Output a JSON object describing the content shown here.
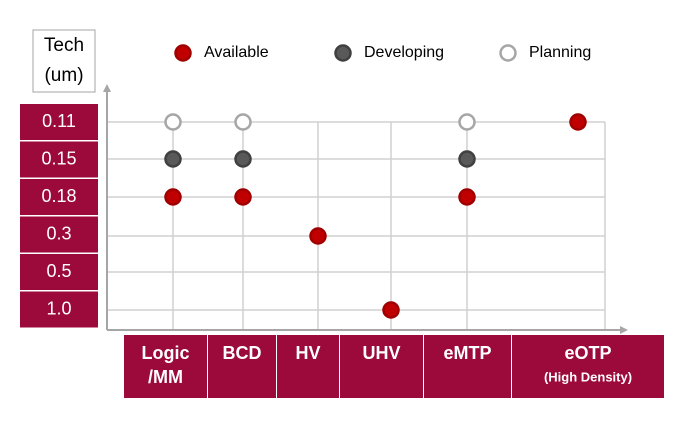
{
  "axis_title": [
    "Tech",
    "(um)"
  ],
  "legend": [
    {
      "name": "Available",
      "fill": "#c00000",
      "stroke": "#a00000"
    },
    {
      "name": "Developing",
      "fill": "#595959",
      "stroke": "#404040"
    },
    {
      "name": "Planning",
      "fill": "#ffffff",
      "stroke": "#a6a6a6"
    }
  ],
  "rows": [
    "0.11",
    "0.15",
    "0.18",
    "0.3",
    "0.5",
    "1.0"
  ],
  "columns": [
    {
      "label": [
        "Logic",
        "/MM"
      ]
    },
    {
      "label": [
        "BCD"
      ]
    },
    {
      "label": [
        "HV"
      ]
    },
    {
      "label": [
        "UHV"
      ]
    },
    {
      "label": [
        "eMTP"
      ]
    },
    {
      "label": [
        "eOTP"
      ],
      "sublabel": "(High Density)"
    }
  ],
  "points": [
    {
      "column": 0,
      "row": 0,
      "status": 2
    },
    {
      "column": 0,
      "row": 1,
      "status": 1
    },
    {
      "column": 0,
      "row": 2,
      "status": 0
    },
    {
      "column": 1,
      "row": 0,
      "status": 2
    },
    {
      "column": 1,
      "row": 1,
      "status": 1
    },
    {
      "column": 1,
      "row": 2,
      "status": 0
    },
    {
      "column": 2,
      "row": 3,
      "status": 0
    },
    {
      "column": 3,
      "row": 5,
      "status": 0
    },
    {
      "column": 4,
      "row": 0,
      "status": 2
    },
    {
      "column": 4,
      "row": 1,
      "status": 1
    },
    {
      "column": 4,
      "row": 2,
      "status": 0
    },
    {
      "column": 5,
      "row": 0,
      "status": 0
    }
  ]
}
